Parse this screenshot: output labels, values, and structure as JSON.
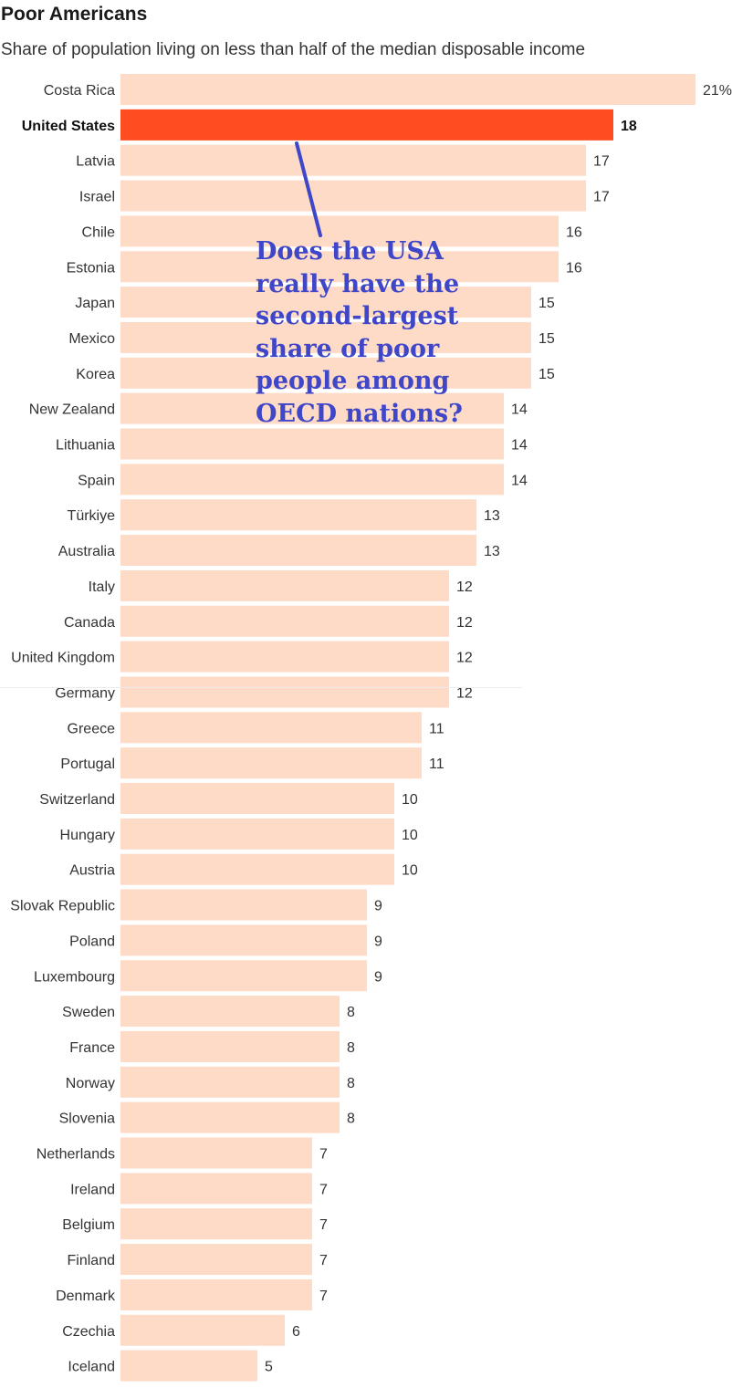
{
  "title": "Poor Americans",
  "subtitle": "Share of population living on less than half of the median disposable income",
  "annotation": [
    "Does the USA",
    "really have the",
    "second-largest",
    "share of poor",
    "people among",
    "OECD nations?"
  ],
  "colors": {
    "bar": "#fddbc6",
    "highlight": "#ff4c20",
    "annotation": "#3f46c8",
    "label": "#333333"
  },
  "chart_data": {
    "type": "bar",
    "orientation": "horizontal",
    "title": "Poor Americans",
    "subtitle": "Share of population living on less than half of the median disposable income",
    "categories": [
      "Costa Rica",
      "United States",
      "Latvia",
      "Israel",
      "Chile",
      "Estonia",
      "Japan",
      "Mexico",
      "Korea",
      "New Zealand",
      "Lithuania",
      "Spain",
      "Türkiye",
      "Australia",
      "Italy",
      "Canada",
      "United Kingdom",
      "Germany",
      "Greece",
      "Portugal",
      "Switzerland",
      "Hungary",
      "Austria",
      "Slovak Republic",
      "Poland",
      "Luxembourg",
      "Sweden",
      "France",
      "Norway",
      "Slovenia",
      "Netherlands",
      "Ireland",
      "Belgium",
      "Finland",
      "Denmark",
      "Czechia",
      "Iceland"
    ],
    "values": [
      21,
      18,
      17,
      17,
      16,
      16,
      15,
      15,
      15,
      14,
      14,
      14,
      13,
      13,
      12,
      12,
      12,
      12,
      11,
      11,
      10,
      10,
      10,
      9,
      9,
      9,
      8,
      8,
      8,
      8,
      7,
      7,
      7,
      7,
      7,
      6,
      5
    ],
    "value_labels": [
      "21%",
      "18",
      "17",
      "17",
      "16",
      "16",
      "15",
      "15",
      "15",
      "14",
      "14",
      "14",
      "13",
      "13",
      "12",
      "12",
      "12",
      "12",
      "11",
      "11",
      "10",
      "10",
      "10",
      "9",
      "9",
      "9",
      "8",
      "8",
      "8",
      "8",
      "7",
      "7",
      "7",
      "7",
      "7",
      "6",
      "5"
    ],
    "highlight": "United States",
    "unit": "%"
  }
}
